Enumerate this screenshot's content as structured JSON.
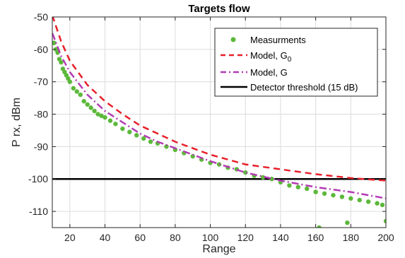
{
  "chart_data": {
    "type": "scatter",
    "title": "Targets flow",
    "xlabel": "Range",
    "ylabel": "P rx, dBm",
    "xlim": [
      10,
      200
    ],
    "ylim": [
      -115,
      -50
    ],
    "xticks": [
      20,
      40,
      60,
      80,
      100,
      120,
      140,
      160,
      180,
      200
    ],
    "yticks": [
      -110,
      -100,
      -90,
      -80,
      -70,
      -60,
      -50
    ],
    "grid": true,
    "legend_position": "top-right",
    "colors": {
      "measurements": "#5cb83a",
      "model_g0": "#e8202a",
      "model_g": "#b43cb4",
      "threshold": "#000000"
    },
    "series": [
      {
        "name": "Measurments",
        "kind": "scatter",
        "x": [
          11,
          12,
          13,
          14,
          15,
          16,
          17,
          18,
          19,
          20,
          22,
          24,
          26,
          28,
          30,
          32,
          34,
          36,
          38,
          40,
          43,
          46,
          50,
          54,
          58,
          62,
          66,
          70,
          75,
          80,
          85,
          90,
          95,
          100,
          105,
          110,
          115,
          120,
          125,
          130,
          135,
          140,
          145,
          150,
          155,
          160,
          162,
          165,
          170,
          175,
          178,
          180,
          185,
          190,
          195,
          198,
          200
        ],
        "y": [
          -58,
          -60,
          -61,
          -63,
          -64,
          -66,
          -67,
          -68,
          -69,
          -70,
          -72,
          -73,
          -74,
          -76,
          -77,
          -78,
          -79,
          -80,
          -80.5,
          -81,
          -82,
          -83,
          -84.5,
          -85.5,
          -86.5,
          -87.5,
          -88.5,
          -89,
          -90,
          -91,
          -92,
          -93,
          -94,
          -95,
          -95.5,
          -96.5,
          -97,
          -98,
          -99,
          -99.5,
          -100,
          -101,
          -102,
          -102.5,
          -103,
          -104,
          -115,
          -104.5,
          -105,
          -105.5,
          -113.5,
          -106,
          -106.5,
          -107,
          -107.5,
          -108,
          -113
        ]
      },
      {
        "name": "Model, G0",
        "kind": "line",
        "style": "dashed",
        "x": [
          10,
          15,
          20,
          30,
          40,
          50,
          60,
          70,
          80,
          90,
          100,
          120,
          140,
          160,
          180,
          200
        ],
        "y": [
          -49.5,
          -57.5,
          -63.5,
          -71,
          -76,
          -80,
          -83.5,
          -86,
          -88.5,
          -90.5,
          -92.5,
          -95.5,
          -97,
          -98.5,
          -99.7,
          -100.5
        ]
      },
      {
        "name": "Model, G",
        "kind": "line",
        "style": "dash-dot",
        "x": [
          10,
          15,
          20,
          30,
          40,
          50,
          60,
          70,
          80,
          90,
          100,
          120,
          140,
          160,
          180,
          200
        ],
        "y": [
          -55,
          -62,
          -67,
          -74,
          -79,
          -82.5,
          -86,
          -88.5,
          -90.5,
          -92.5,
          -94.5,
          -98,
          -100.5,
          -102.5,
          -104,
          -106
        ]
      },
      {
        "name": "Detector threshold (15 dB)",
        "kind": "hline",
        "y": -100
      }
    ]
  }
}
